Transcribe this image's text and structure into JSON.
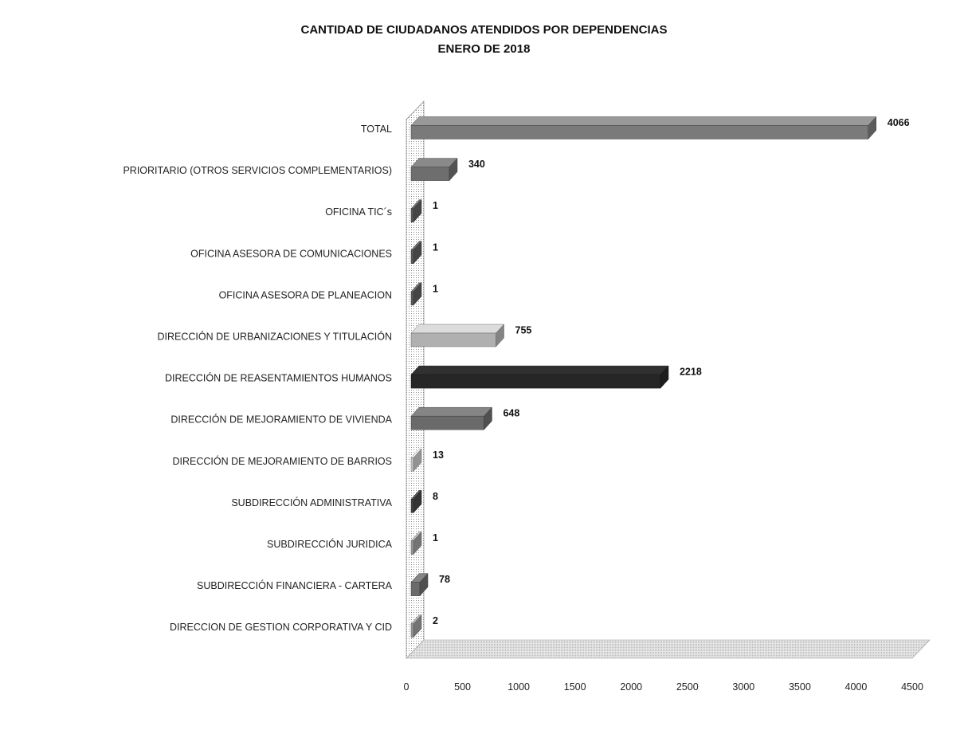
{
  "chart_data": {
    "type": "bar",
    "orientation": "horizontal",
    "title": "CANTIDAD DE CIUDADANOS ATENDIDOS POR DEPENDENCIAS",
    "subtitle": "ENERO DE 2018",
    "xlabel": "",
    "ylabel": "",
    "xlim": [
      0,
      4500
    ],
    "x_ticks": [
      "0",
      "500",
      "1000",
      "1500",
      "2000",
      "2500",
      "3000",
      "3500",
      "4000",
      "4500"
    ],
    "grid": false,
    "legend": "none",
    "categories": [
      "TOTAL",
      "PRIORITARIO (OTROS SERVICIOS COMPLEMENTARIOS)",
      "OFICINA TIC´s",
      "OFICINA ASESORA DE COMUNICACIONES",
      "OFICINA ASESORA DE PLANEACION",
      "DIRECCIÓN DE URBANIZACIONES Y TITULACIÓN",
      "DIRECCIÓN DE REASENTAMIENTOS HUMANOS",
      "DIRECCIÓN DE MEJORAMIENTO DE VIVIENDA",
      "DIRECCIÓN DE MEJORAMIENTO DE BARRIOS",
      "SUBDIRECCIÓN ADMINISTRATIVA",
      "SUBDIRECCIÓN JURIDICA",
      "SUBDIRECCIÓN FINANCIERA - CARTERA",
      "DIRECCION DE GESTION CORPORATIVA Y CID"
    ],
    "values": [
      4066,
      340,
      1,
      1,
      1,
      755,
      2218,
      648,
      13,
      8,
      1,
      78,
      2
    ],
    "value_labels": [
      "4066",
      "340",
      "1",
      "1",
      "1",
      "755",
      "2218",
      "648",
      "13",
      "8",
      "1",
      "78",
      "2"
    ],
    "colors": [
      "#7a7a7a",
      "#6e6e6e",
      "#5c5c5c",
      "#5c5c5c",
      "#5c5c5c",
      "#b0b0b0",
      "#262626",
      "#6a6a6a",
      "#c4c4c4",
      "#444444",
      "#9a9a9a",
      "#6a6a6a",
      "#9a9a9a"
    ]
  }
}
